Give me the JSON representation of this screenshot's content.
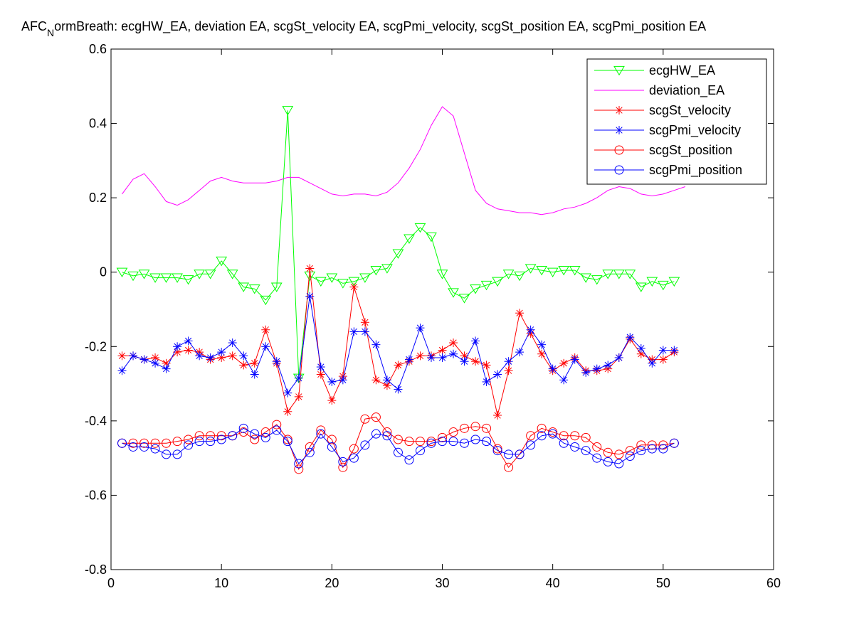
{
  "chart_data": {
    "type": "line",
    "title_main": "AFC",
    "title_sub": "N",
    "title_rest": "ormBreath: ecgHW_EA, deviation EA, scgSt_velocity EA, scgPmi_velocity, scgSt_position EA, scgPmi_position EA",
    "xlim": [
      0,
      60
    ],
    "ylim": [
      -0.8,
      0.6
    ],
    "xticks": [
      0,
      10,
      20,
      30,
      40,
      50,
      60
    ],
    "yticks": [
      -0.8,
      -0.6,
      -0.4,
      -0.2,
      0,
      0.2,
      0.4,
      0.6
    ],
    "xtick_labels": [
      "0",
      "10",
      "20",
      "30",
      "40",
      "50",
      "60"
    ],
    "ytick_labels": [
      "-0.8",
      "-0.6",
      "-0.4",
      "-0.2",
      "0",
      "0.2",
      "0.4",
      "0.6"
    ],
    "legend_position": "top-right",
    "series": [
      {
        "name": "ecgHW_EA",
        "color": "#00ff00",
        "marker": "triangle-down",
        "x": [
          1,
          2,
          3,
          4,
          5,
          6,
          7,
          8,
          9,
          10,
          11,
          12,
          13,
          14,
          15,
          16,
          17,
          18,
          19,
          20,
          21,
          22,
          23,
          24,
          25,
          26,
          27,
          28,
          29,
          30,
          31,
          32,
          33,
          34,
          35,
          36,
          37,
          38,
          39,
          40,
          41,
          42,
          43,
          44,
          45,
          46,
          47,
          48,
          49,
          50,
          51
        ],
        "values": [
          0.0,
          -0.01,
          -0.005,
          -0.015,
          -0.015,
          -0.015,
          -0.02,
          -0.005,
          -0.005,
          0.03,
          -0.005,
          -0.04,
          -0.045,
          -0.075,
          -0.04,
          0.435,
          -0.285,
          -0.01,
          -0.025,
          -0.015,
          -0.03,
          -0.025,
          -0.015,
          0.005,
          0.01,
          0.05,
          0.09,
          0.12,
          0.095,
          -0.005,
          -0.055,
          -0.07,
          -0.045,
          -0.035,
          -0.025,
          -0.005,
          -0.01,
          0.01,
          0.005,
          0.0,
          0.005,
          0.005,
          -0.015,
          -0.02,
          -0.005,
          -0.005,
          -0.005,
          -0.04,
          -0.025,
          -0.035,
          -0.025
        ]
      },
      {
        "name": "deviation_EA",
        "color": "#ff00ff",
        "marker": "none",
        "x": [
          1,
          2,
          3,
          4,
          5,
          6,
          7,
          8,
          9,
          10,
          11,
          12,
          13,
          14,
          15,
          16,
          17,
          18,
          19,
          20,
          21,
          22,
          23,
          24,
          25,
          26,
          27,
          28,
          29,
          30,
          31,
          32,
          33,
          34,
          35,
          36,
          37,
          38,
          39,
          40,
          41,
          42,
          43,
          44,
          45,
          46,
          47,
          48,
          49,
          50,
          51,
          52
        ],
        "values": [
          0.21,
          0.25,
          0.265,
          0.23,
          0.19,
          0.18,
          0.195,
          0.22,
          0.245,
          0.255,
          0.245,
          0.24,
          0.24,
          0.24,
          0.245,
          0.255,
          0.255,
          0.24,
          0.225,
          0.21,
          0.205,
          0.21,
          0.21,
          0.205,
          0.215,
          0.24,
          0.28,
          0.33,
          0.395,
          0.445,
          0.42,
          0.32,
          0.22,
          0.185,
          0.17,
          0.165,
          0.16,
          0.16,
          0.155,
          0.16,
          0.17,
          0.175,
          0.185,
          0.2,
          0.22,
          0.23,
          0.225,
          0.21,
          0.205,
          0.21,
          0.22,
          0.23
        ]
      },
      {
        "name": "scgSt_velocity",
        "color": "#ff0000",
        "marker": "asterisk",
        "x": [
          1,
          2,
          3,
          4,
          5,
          6,
          7,
          8,
          9,
          10,
          11,
          12,
          13,
          14,
          15,
          16,
          17,
          18,
          19,
          20,
          21,
          22,
          23,
          24,
          25,
          26,
          27,
          28,
          29,
          30,
          31,
          32,
          33,
          34,
          35,
          36,
          37,
          38,
          39,
          40,
          41,
          42,
          43,
          44,
          45,
          46,
          47,
          48,
          49,
          50,
          51
        ],
        "values": [
          -0.225,
          -0.225,
          -0.235,
          -0.23,
          -0.245,
          -0.215,
          -0.21,
          -0.215,
          -0.235,
          -0.23,
          -0.225,
          -0.25,
          -0.245,
          -0.155,
          -0.245,
          -0.375,
          -0.335,
          0.01,
          -0.275,
          -0.345,
          -0.28,
          -0.04,
          -0.135,
          -0.29,
          -0.305,
          -0.25,
          -0.24,
          -0.225,
          -0.225,
          -0.21,
          -0.19,
          -0.225,
          -0.24,
          -0.25,
          -0.385,
          -0.265,
          -0.11,
          -0.165,
          -0.22,
          -0.265,
          -0.245,
          -0.23,
          -0.265,
          -0.265,
          -0.26,
          -0.23,
          -0.18,
          -0.22,
          -0.235,
          -0.235,
          -0.215
        ]
      },
      {
        "name": "scgPmi_velocity",
        "color": "#0000ff",
        "marker": "asterisk",
        "x": [
          1,
          2,
          3,
          4,
          5,
          6,
          7,
          8,
          9,
          10,
          11,
          12,
          13,
          14,
          15,
          16,
          17,
          18,
          19,
          20,
          21,
          22,
          23,
          24,
          25,
          26,
          27,
          28,
          29,
          30,
          31,
          32,
          33,
          34,
          35,
          36,
          37,
          38,
          39,
          40,
          41,
          42,
          43,
          44,
          45,
          46,
          47,
          48,
          49,
          50,
          51
        ],
        "values": [
          -0.265,
          -0.225,
          -0.235,
          -0.245,
          -0.26,
          -0.2,
          -0.185,
          -0.225,
          -0.23,
          -0.215,
          -0.19,
          -0.225,
          -0.275,
          -0.2,
          -0.24,
          -0.325,
          -0.285,
          -0.065,
          -0.255,
          -0.295,
          -0.29,
          -0.16,
          -0.16,
          -0.195,
          -0.29,
          -0.315,
          -0.235,
          -0.15,
          -0.23,
          -0.23,
          -0.22,
          -0.24,
          -0.185,
          -0.295,
          -0.275,
          -0.24,
          -0.215,
          -0.155,
          -0.195,
          -0.26,
          -0.29,
          -0.235,
          -0.27,
          -0.26,
          -0.25,
          -0.23,
          -0.175,
          -0.205,
          -0.245,
          -0.21,
          -0.21
        ]
      },
      {
        "name": "scgSt_position",
        "color": "#ff0000",
        "marker": "circle",
        "x": [
          1,
          2,
          3,
          4,
          5,
          6,
          7,
          8,
          9,
          10,
          11,
          12,
          13,
          14,
          15,
          16,
          17,
          18,
          19,
          20,
          21,
          22,
          23,
          24,
          25,
          26,
          27,
          28,
          29,
          30,
          31,
          32,
          33,
          34,
          35,
          36,
          37,
          38,
          39,
          40,
          41,
          42,
          43,
          44,
          45,
          46,
          47,
          48,
          49,
          50,
          51
        ],
        "values": [
          -0.46,
          -0.46,
          -0.46,
          -0.46,
          -0.46,
          -0.455,
          -0.45,
          -0.44,
          -0.44,
          -0.44,
          -0.44,
          -0.43,
          -0.45,
          -0.43,
          -0.41,
          -0.45,
          -0.53,
          -0.47,
          -0.425,
          -0.45,
          -0.525,
          -0.475,
          -0.395,
          -0.39,
          -0.43,
          -0.45,
          -0.455,
          -0.455,
          -0.455,
          -0.445,
          -0.43,
          -0.42,
          -0.415,
          -0.42,
          -0.475,
          -0.525,
          -0.49,
          -0.44,
          -0.42,
          -0.43,
          -0.44,
          -0.44,
          -0.445,
          -0.47,
          -0.485,
          -0.49,
          -0.48,
          -0.465,
          -0.465,
          -0.465,
          -0.46
        ]
      },
      {
        "name": "scgPmi_position",
        "color": "#0000ff",
        "marker": "circle",
        "x": [
          1,
          2,
          3,
          4,
          5,
          6,
          7,
          8,
          9,
          10,
          11,
          12,
          13,
          14,
          15,
          16,
          17,
          18,
          19,
          20,
          21,
          22,
          23,
          24,
          25,
          26,
          27,
          28,
          29,
          30,
          31,
          32,
          33,
          34,
          35,
          36,
          37,
          38,
          39,
          40,
          41,
          42,
          43,
          44,
          45,
          46,
          47,
          48,
          49,
          50,
          51
        ],
        "values": [
          -0.46,
          -0.47,
          -0.47,
          -0.475,
          -0.49,
          -0.49,
          -0.465,
          -0.455,
          -0.455,
          -0.45,
          -0.44,
          -0.42,
          -0.435,
          -0.445,
          -0.425,
          -0.455,
          -0.515,
          -0.485,
          -0.435,
          -0.47,
          -0.51,
          -0.5,
          -0.465,
          -0.435,
          -0.44,
          -0.485,
          -0.505,
          -0.48,
          -0.46,
          -0.455,
          -0.455,
          -0.46,
          -0.45,
          -0.455,
          -0.48,
          -0.49,
          -0.49,
          -0.465,
          -0.44,
          -0.435,
          -0.46,
          -0.47,
          -0.48,
          -0.5,
          -0.51,
          -0.515,
          -0.495,
          -0.48,
          -0.475,
          -0.475,
          -0.46
        ]
      }
    ]
  }
}
